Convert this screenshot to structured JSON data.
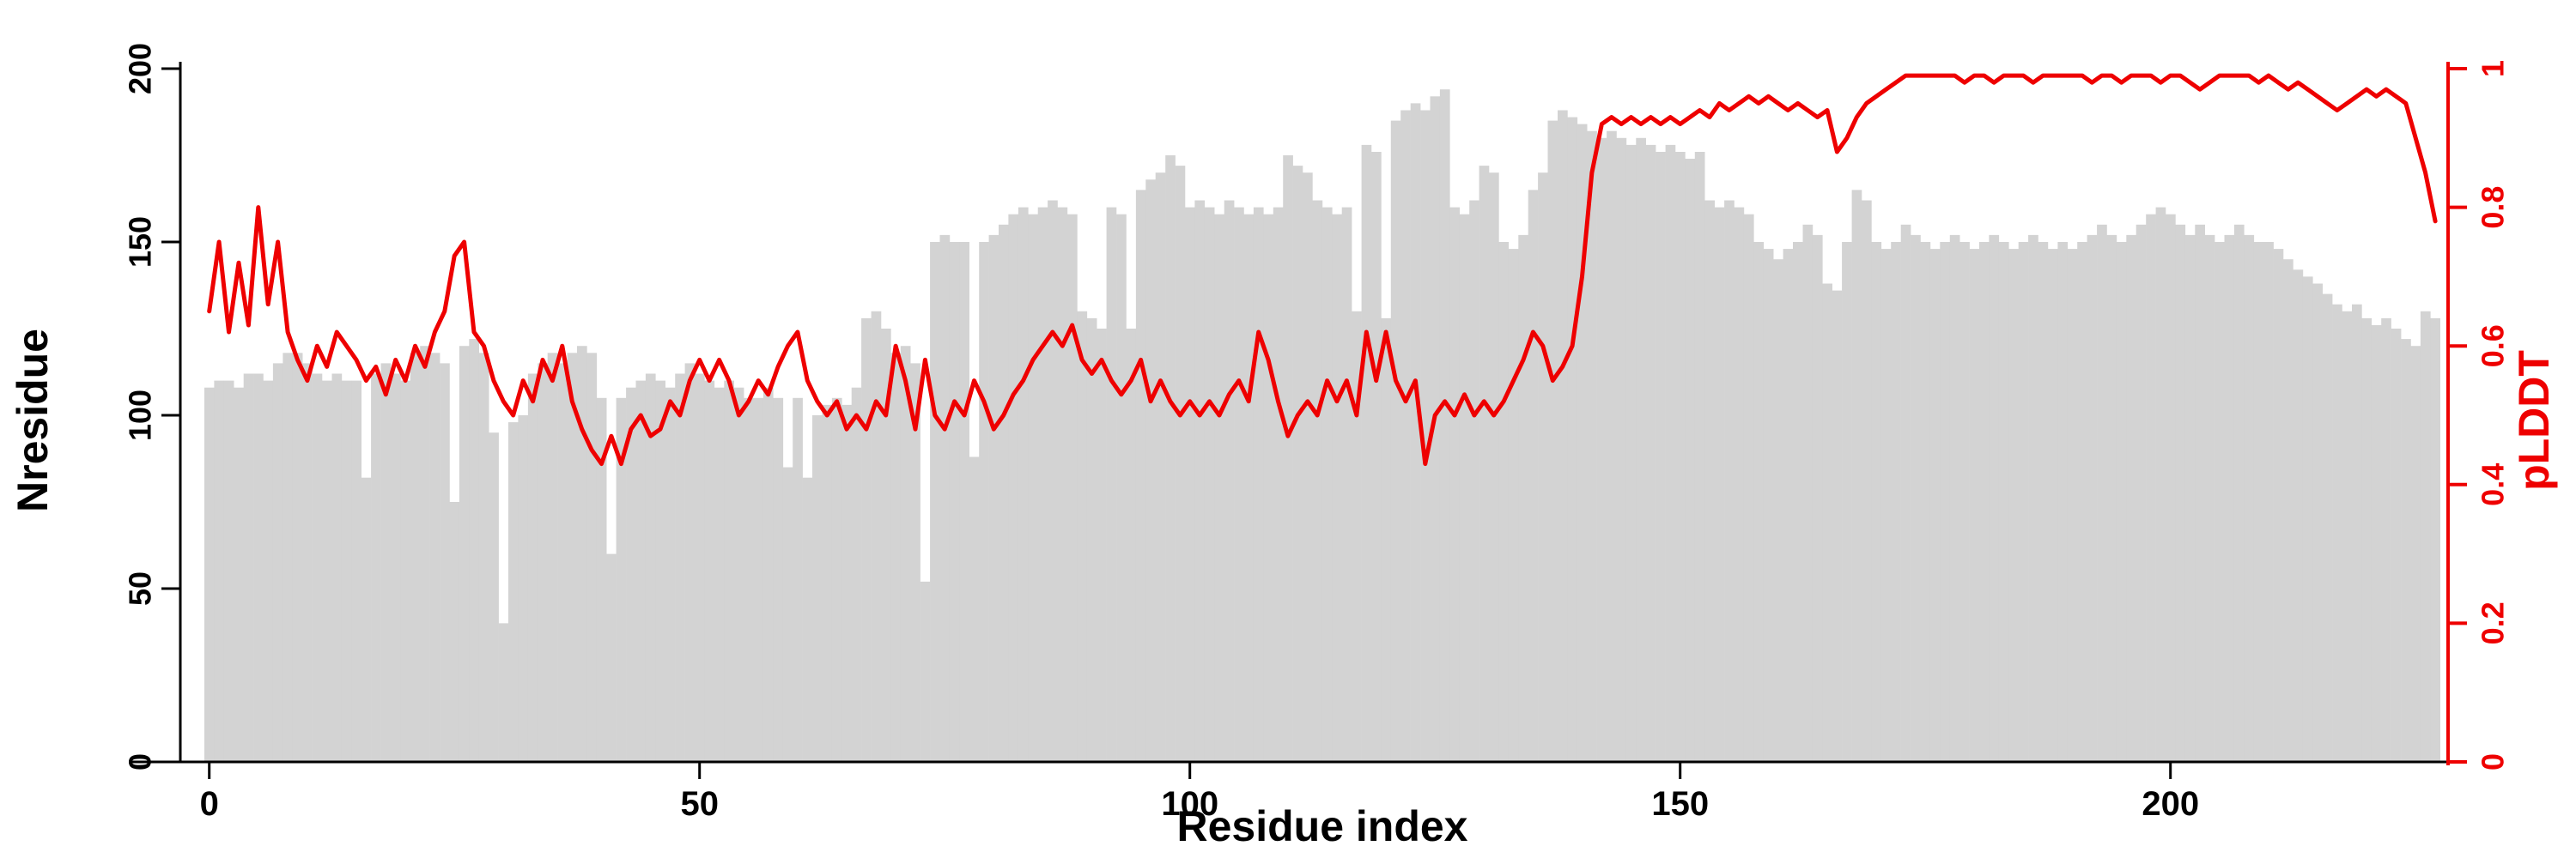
{
  "figure": {
    "background": "#ffffff"
  },
  "labels": {
    "x_axis": "Residue index",
    "y_axis_left": "Nresidue",
    "y_axis_right": "pLDDT"
  },
  "colors": {
    "bar": "#d3d3d3",
    "line": "#ee0000",
    "axis": "#000000",
    "background": "#ffffff"
  },
  "chart_data": {
    "type": "bar",
    "x_description": "Residue index, 0 to 227 in steps of 1",
    "xlabel": "Residue index",
    "ylabel_left": "Nresidue",
    "ylabel_right": "pLDDT",
    "x_ticks": [
      0,
      50,
      100,
      150,
      200
    ],
    "y_left_ticks": [
      0,
      50,
      100,
      150,
      200
    ],
    "y_left_lim": [
      0,
      200
    ],
    "y_right_ticks": [
      "0",
      "0.2",
      "0.4",
      "0.6",
      "0.8",
      "1"
    ],
    "y_right_values": [
      0,
      0.2,
      0.4,
      0.6,
      0.8,
      1
    ],
    "y_right_lim": [
      0,
      1
    ],
    "grid": false,
    "legend": "none",
    "series": [
      {
        "name": "Nresidue",
        "type": "bar",
        "axis": "left",
        "color": "#d3d3d3",
        "values": [
          108,
          110,
          110,
          108,
          112,
          112,
          110,
          115,
          118,
          118,
          115,
          112,
          110,
          112,
          110,
          110,
          82,
          112,
          115,
          112,
          110,
          118,
          120,
          118,
          115,
          75,
          120,
          122,
          118,
          95,
          40,
          98,
          100,
          112,
          115,
          118,
          115,
          118,
          120,
          118,
          105,
          60,
          105,
          108,
          110,
          112,
          110,
          108,
          112,
          115,
          112,
          110,
          108,
          110,
          108,
          105,
          105,
          108,
          105,
          85,
          105,
          82,
          100,
          103,
          105,
          103,
          108,
          128,
          130,
          125,
          118,
          120,
          115,
          52,
          150,
          152,
          150,
          150,
          88,
          150,
          152,
          155,
          158,
          160,
          158,
          160,
          162,
          160,
          158,
          130,
          128,
          125,
          160,
          158,
          125,
          165,
          168,
          170,
          175,
          172,
          160,
          162,
          160,
          158,
          162,
          160,
          158,
          160,
          158,
          160,
          175,
          172,
          170,
          162,
          160,
          158,
          160,
          130,
          178,
          176,
          128,
          185,
          188,
          190,
          188,
          192,
          194,
          160,
          158,
          162,
          172,
          170,
          150,
          148,
          152,
          165,
          170,
          185,
          188,
          186,
          184,
          182,
          180,
          182,
          180,
          178,
          180,
          178,
          176,
          178,
          176,
          174,
          176,
          162,
          160,
          162,
          160,
          158,
          150,
          148,
          145,
          148,
          150,
          155,
          152,
          138,
          136,
          150,
          165,
          162,
          150,
          148,
          150,
          155,
          152,
          150,
          148,
          150,
          152,
          150,
          148,
          150,
          152,
          150,
          148,
          150,
          152,
          150,
          148,
          150,
          148,
          150,
          152,
          155,
          152,
          150,
          152,
          155,
          158,
          160,
          158,
          155,
          152,
          155,
          152,
          150,
          152,
          155,
          152,
          150,
          150,
          148,
          145,
          142,
          140,
          138,
          135,
          132,
          130,
          132,
          128,
          126,
          128,
          125,
          122,
          120,
          130,
          128
        ]
      },
      {
        "name": "pLDDT",
        "type": "line",
        "axis": "right",
        "color": "#ee0000",
        "values": [
          0.65,
          0.75,
          0.62,
          0.72,
          0.63,
          0.8,
          0.66,
          0.75,
          0.62,
          0.58,
          0.55,
          0.6,
          0.57,
          0.62,
          0.6,
          0.58,
          0.55,
          0.57,
          0.53,
          0.58,
          0.55,
          0.6,
          0.57,
          0.62,
          0.65,
          0.73,
          0.75,
          0.62,
          0.6,
          0.55,
          0.52,
          0.5,
          0.55,
          0.52,
          0.58,
          0.55,
          0.6,
          0.52,
          0.48,
          0.45,
          0.43,
          0.47,
          0.43,
          0.48,
          0.5,
          0.47,
          0.48,
          0.52,
          0.5,
          0.55,
          0.58,
          0.55,
          0.58,
          0.55,
          0.5,
          0.52,
          0.55,
          0.53,
          0.57,
          0.6,
          0.62,
          0.55,
          0.52,
          0.5,
          0.52,
          0.48,
          0.5,
          0.48,
          0.52,
          0.5,
          0.6,
          0.55,
          0.48,
          0.58,
          0.5,
          0.48,
          0.52,
          0.5,
          0.55,
          0.52,
          0.48,
          0.5,
          0.53,
          0.55,
          0.58,
          0.6,
          0.62,
          0.6,
          0.63,
          0.58,
          0.56,
          0.58,
          0.55,
          0.53,
          0.55,
          0.58,
          0.52,
          0.55,
          0.52,
          0.5,
          0.52,
          0.5,
          0.52,
          0.5,
          0.53,
          0.55,
          0.52,
          0.62,
          0.58,
          0.52,
          0.47,
          0.5,
          0.52,
          0.5,
          0.55,
          0.52,
          0.55,
          0.5,
          0.62,
          0.55,
          0.62,
          0.55,
          0.52,
          0.55,
          0.43,
          0.5,
          0.52,
          0.5,
          0.53,
          0.5,
          0.52,
          0.5,
          0.52,
          0.55,
          0.58,
          0.62,
          0.6,
          0.55,
          0.57,
          0.6,
          0.7,
          0.85,
          0.92,
          0.93,
          0.92,
          0.93,
          0.92,
          0.93,
          0.92,
          0.93,
          0.92,
          0.93,
          0.94,
          0.93,
          0.95,
          0.94,
          0.95,
          0.96,
          0.95,
          0.96,
          0.95,
          0.94,
          0.95,
          0.94,
          0.93,
          0.94,
          0.88,
          0.9,
          0.93,
          0.95,
          0.96,
          0.97,
          0.98,
          0.99,
          0.99,
          0.99,
          0.99,
          0.99,
          0.99,
          0.98,
          0.99,
          0.99,
          0.98,
          0.99,
          0.99,
          0.99,
          0.98,
          0.99,
          0.99,
          0.99,
          0.99,
          0.99,
          0.98,
          0.99,
          0.99,
          0.98,
          0.99,
          0.99,
          0.99,
          0.98,
          0.99,
          0.99,
          0.98,
          0.97,
          0.98,
          0.99,
          0.99,
          0.99,
          0.99,
          0.98,
          0.99,
          0.98,
          0.97,
          0.98,
          0.97,
          0.96,
          0.95,
          0.94,
          0.95,
          0.96,
          0.97,
          0.96,
          0.97,
          0.96,
          0.95,
          0.9,
          0.85,
          0.78
        ]
      }
    ]
  }
}
